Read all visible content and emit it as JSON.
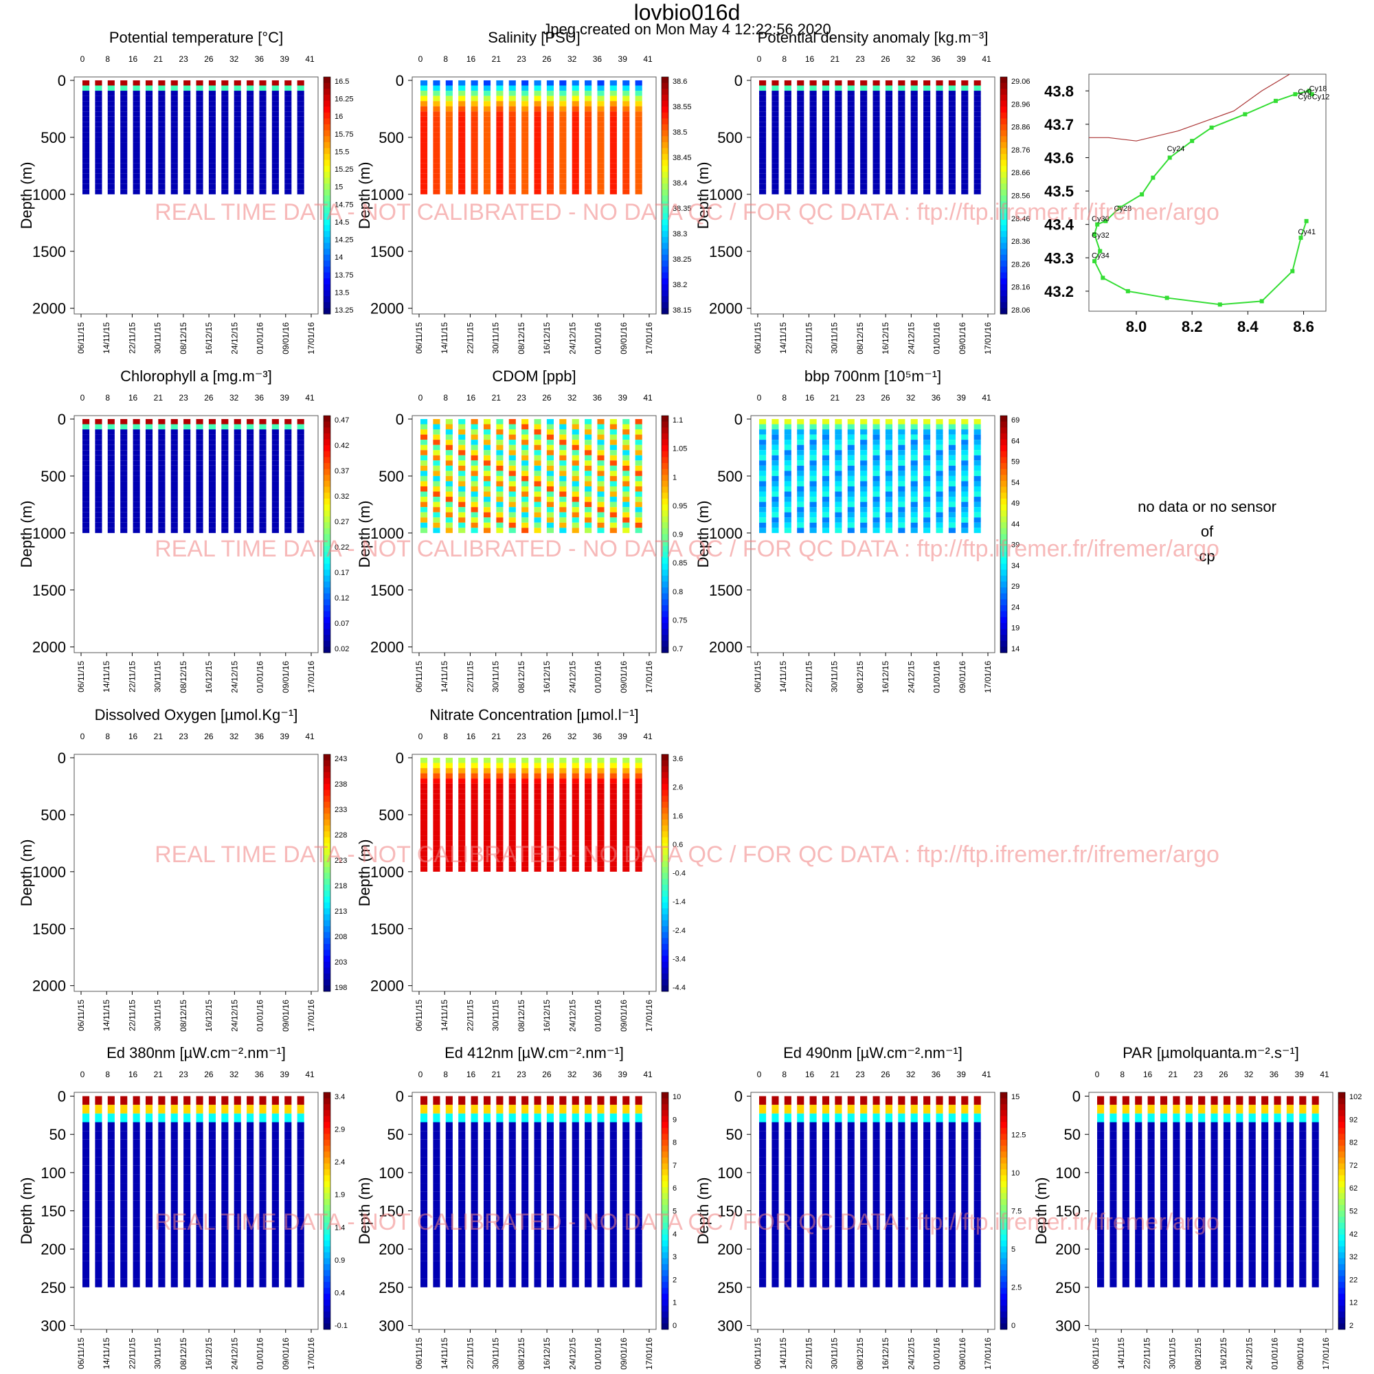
{
  "header": {
    "title": "lovbio016d",
    "subtitle": "Jpeg created on  Mon May  4 12:22:56 2020"
  },
  "watermark": "REAL TIME DATA - NOT CALIBRATED - NO DATA QC  /  FOR QC DATA : ftp://ftp.ifremer.fr/ifremer/argo",
  "axes_common": {
    "depth_label": "Depth (m)",
    "cycle_ticks": [
      "0",
      "8",
      "16",
      "21",
      "23",
      "26",
      "32",
      "36",
      "39",
      "41"
    ],
    "date_ticks": [
      "06/11/15",
      "14/11/15",
      "22/11/15",
      "30/11/15",
      "08/12/15",
      "16/12/15",
      "24/12/15",
      "01/01/16",
      "09/01/16",
      "17/01/16"
    ],
    "depth_ticks_deep": [
      "0",
      "500",
      "1000",
      "1500",
      "2000"
    ],
    "depth_ticks_shallow": [
      "0",
      "50",
      "100",
      "150",
      "200",
      "250",
      "300"
    ]
  },
  "no_data_panel": {
    "lines": [
      "no data or no sensor",
      "of",
      "cp"
    ]
  },
  "colors": {
    "palette": [
      "#00007f",
      "#0000ff",
      "#007fff",
      "#00ffff",
      "#7fff7f",
      "#ffff00",
      "#ff7f00",
      "#ff0000",
      "#7f0000"
    ],
    "track": "#33dd33",
    "coast": "#aa3333"
  },
  "chart_data": [
    {
      "type": "heatmap",
      "id": "temp",
      "title": "Potential temperature [°C]",
      "ylabel": "Depth (m)",
      "ylim": [
        2050,
        -30
      ],
      "colorbar": [
        "16.5",
        "16.25",
        "16",
        "15.75",
        "15.5",
        "15.25",
        "15",
        "14.75",
        "14.5",
        "14.25",
        "14",
        "13.75",
        "13.5",
        "13.25"
      ]
    },
    {
      "type": "heatmap",
      "id": "sal",
      "title": "Salinity [PSU]",
      "ylabel": "Depth (m)",
      "ylim": [
        2050,
        -30
      ],
      "colorbar": [
        "38.6",
        "38.55",
        "38.5",
        "38.45",
        "38.4",
        "38.35",
        "38.3",
        "38.25",
        "38.2",
        "38.15"
      ]
    },
    {
      "type": "heatmap",
      "id": "dens",
      "title": "Potential density anomaly [kg.m⁻³]",
      "ylabel": "Depth (m)",
      "ylim": [
        2050,
        -30
      ],
      "colorbar": [
        "29.06",
        "28.96",
        "28.86",
        "28.76",
        "28.66",
        "28.56",
        "28.46",
        "28.36",
        "28.26",
        "28.16",
        "28.06"
      ]
    },
    {
      "type": "scatter",
      "id": "map",
      "x_ticks": [
        "8.0",
        "8.2",
        "8.4",
        "8.6"
      ],
      "y_ticks": [
        "43.8",
        "43.7",
        "43.6",
        "43.5",
        "43.4",
        "43.3",
        "43.2"
      ],
      "xlim": [
        7.83,
        8.68
      ],
      "ylim": [
        43.14,
        43.85
      ],
      "track": [
        [
          8.63,
          43.79
        ],
        [
          8.62,
          43.8
        ],
        [
          8.57,
          43.79
        ],
        [
          8.5,
          43.77
        ],
        [
          8.39,
          43.73
        ],
        [
          8.27,
          43.69
        ],
        [
          8.2,
          43.65
        ],
        [
          8.12,
          43.6
        ],
        [
          8.06,
          43.54
        ],
        [
          8.02,
          43.49
        ],
        [
          7.94,
          43.45
        ],
        [
          7.89,
          43.41
        ],
        [
          7.86,
          43.4
        ],
        [
          7.85,
          43.37
        ],
        [
          7.87,
          43.32
        ],
        [
          7.85,
          43.29
        ],
        [
          7.88,
          43.24
        ],
        [
          7.97,
          43.2
        ],
        [
          8.11,
          43.18
        ],
        [
          8.3,
          43.16
        ],
        [
          8.45,
          43.17
        ],
        [
          8.56,
          43.26
        ],
        [
          8.59,
          43.36
        ],
        [
          8.61,
          43.41
        ]
      ],
      "cycle_labels": [
        {
          "text": "Cy18",
          "x": 8.62,
          "y": 43.8
        },
        {
          "text": "Cy0",
          "x": 8.58,
          "y": 43.79
        },
        {
          "text": "Cy6",
          "x": 8.58,
          "y": 43.775
        },
        {
          "text": "Cy12",
          "x": 8.63,
          "y": 43.775
        },
        {
          "text": "Cy24",
          "x": 8.11,
          "y": 43.62
        },
        {
          "text": "Cy28",
          "x": 7.92,
          "y": 43.44
        },
        {
          "text": "Cy30",
          "x": 7.84,
          "y": 43.41
        },
        {
          "text": "Cy32",
          "x": 7.84,
          "y": 43.36
        },
        {
          "text": "Cy34",
          "x": 7.84,
          "y": 43.3
        },
        {
          "text": "Cy41",
          "x": 8.58,
          "y": 43.37
        }
      ]
    },
    {
      "type": "heatmap",
      "id": "chla",
      "title": "Chlorophyll a [mg.m⁻³]",
      "ylabel": "Depth (m)",
      "ylim": [
        2050,
        -30
      ],
      "colorbar": [
        "0.47",
        "0.42",
        "0.37",
        "0.32",
        "0.27",
        "0.22",
        "0.17",
        "0.12",
        "0.07",
        "0.02"
      ]
    },
    {
      "type": "heatmap",
      "id": "cdom",
      "title": "CDOM  [ppb]",
      "ylabel": "Depth (m)",
      "ylim": [
        2050,
        -30
      ],
      "colorbar": [
        "1.1",
        "1.05",
        "1",
        "0.95",
        "0.9",
        "0.85",
        "0.8",
        "0.75",
        "0.7"
      ]
    },
    {
      "type": "heatmap",
      "id": "bbp",
      "title": "bbp 700nm [10⁵m⁻¹]",
      "ylabel": "Depth (m)",
      "ylim": [
        2050,
        -30
      ],
      "colorbar": [
        "69",
        "64",
        "59",
        "54",
        "49",
        "44",
        "39",
        "34",
        "29",
        "24",
        "19",
        "14"
      ]
    },
    {
      "type": "heatmap",
      "id": "doxy",
      "title": "Dissolved Oxygen [µmol.Kg⁻¹]",
      "ylabel": "Depth (m)",
      "ylim": [
        2050,
        -30
      ],
      "colorbar": [
        "243",
        "238",
        "233",
        "228",
        "223",
        "218",
        "213",
        "208",
        "203",
        "198"
      ]
    },
    {
      "type": "heatmap",
      "id": "no3",
      "title": "Nitrate Concentration [µmol.l⁻¹]",
      "ylabel": "Depth (m)",
      "ylim": [
        2050,
        -30
      ],
      "colorbar": [
        "3.6",
        "2.6",
        "1.6",
        "0.6",
        "-0.4",
        "-1.4",
        "-2.4",
        "-3.4",
        "-4.4"
      ]
    },
    {
      "type": "heatmap",
      "id": "ed380",
      "title": "Ed 380nm [µW.cm⁻².nm⁻¹]",
      "ylabel": "Depth (m)",
      "ylim": [
        305,
        -5
      ],
      "colorbar": [
        "3.4",
        "2.9",
        "2.4",
        "1.9",
        "1.4",
        "0.9",
        "0.4",
        "-0.1"
      ]
    },
    {
      "type": "heatmap",
      "id": "ed412",
      "title": "Ed 412nm [µW.cm⁻².nm⁻¹]",
      "ylabel": "Depth (m)",
      "ylim": [
        305,
        -5
      ],
      "colorbar": [
        "10",
        "9",
        "8",
        "7",
        "6",
        "5",
        "4",
        "3",
        "2",
        "1",
        "0"
      ]
    },
    {
      "type": "heatmap",
      "id": "ed490",
      "title": "Ed 490nm [µW.cm⁻².nm⁻¹]",
      "ylabel": "Depth (m)",
      "ylim": [
        305,
        -5
      ],
      "colorbar": [
        "15",
        "12.5",
        "10",
        "7.5",
        "5",
        "2.5",
        "0"
      ]
    },
    {
      "type": "heatmap",
      "id": "par",
      "title": "PAR [µmolquanta.m⁻².s⁻¹]",
      "ylabel": "Depth (m)",
      "ylim": [
        305,
        -5
      ],
      "colorbar": [
        "102",
        "92",
        "82",
        "72",
        "62",
        "52",
        "42",
        "32",
        "22",
        "12",
        "2"
      ]
    }
  ]
}
